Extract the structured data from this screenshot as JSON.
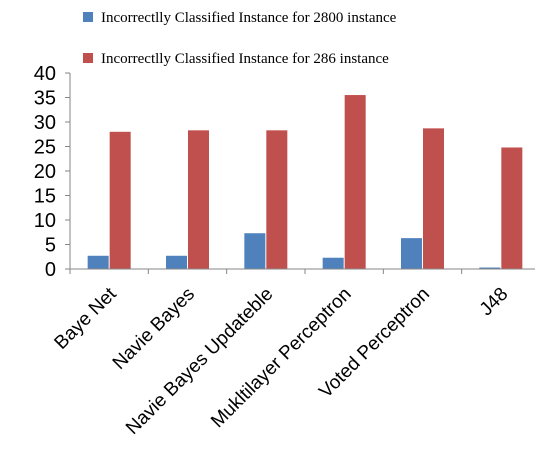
{
  "chart_data": {
    "type": "bar",
    "categories": [
      "Baye Net",
      "Navie Bayes",
      "Navie Bayes Updateble",
      "Mukltilayer Perceptron",
      "Voted Perceptron",
      "J48"
    ],
    "series": [
      {
        "name": "Incorrectlly Classified Instance for 2800 instance",
        "color": "#4F81BD",
        "values": [
          2.7,
          2.7,
          7.3,
          2.3,
          6.3,
          0.3
        ]
      },
      {
        "name": "Incorrectlly Classified Instance for 286 instance",
        "color": "#C0504D",
        "values": [
          28.0,
          28.3,
          28.3,
          35.5,
          28.7,
          24.8
        ]
      }
    ],
    "ylim": [
      0,
      40
    ],
    "yticks": [
      0,
      5,
      10,
      15,
      20,
      25,
      30,
      35,
      40
    ],
    "grid": false,
    "legend": "top"
  }
}
